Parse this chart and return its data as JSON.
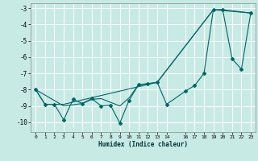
{
  "xlabel": "Humidex (Indice chaleur)",
  "bg_color": "#c8eae5",
  "grid_color": "#ffffff",
  "line_color": "#006666",
  "xlim": [
    -0.5,
    23.5
  ],
  "ylim": [
    -10.6,
    -2.7
  ],
  "xticks": [
    0,
    1,
    2,
    3,
    4,
    5,
    6,
    7,
    8,
    9,
    10,
    11,
    12,
    13,
    14,
    16,
    17,
    18,
    19,
    20,
    21,
    22,
    23
  ],
  "yticks": [
    -10,
    -9,
    -8,
    -7,
    -6,
    -5,
    -4,
    -3
  ],
  "series1": [
    [
      0,
      -8.0
    ],
    [
      1,
      -8.9
    ],
    [
      2,
      -8.9
    ],
    [
      3,
      -9.85
    ],
    [
      4,
      -8.6
    ],
    [
      5,
      -8.85
    ],
    [
      6,
      -8.55
    ],
    [
      7,
      -9.0
    ],
    [
      8,
      -8.95
    ],
    [
      9,
      -10.05
    ],
    [
      10,
      -8.65
    ],
    [
      11,
      -7.7
    ],
    [
      12,
      -7.65
    ],
    [
      13,
      -7.55
    ],
    [
      14,
      -8.9
    ],
    [
      16,
      -8.1
    ],
    [
      17,
      -7.75
    ],
    [
      18,
      -7.0
    ],
    [
      19,
      -3.1
    ],
    [
      20,
      -3.1
    ],
    [
      21,
      -6.1
    ],
    [
      22,
      -6.75
    ],
    [
      23,
      -3.3
    ]
  ],
  "series2": [
    [
      0,
      -8.0
    ],
    [
      3,
      -9.0
    ],
    [
      5,
      -8.85
    ],
    [
      6,
      -8.6
    ],
    [
      7,
      -8.55
    ],
    [
      9,
      -9.0
    ],
    [
      10,
      -8.5
    ],
    [
      11,
      -7.7
    ],
    [
      13,
      -7.55
    ],
    [
      19,
      -3.1
    ],
    [
      20,
      -3.1
    ],
    [
      23,
      -3.3
    ]
  ],
  "series3": [
    [
      0,
      -8.0
    ],
    [
      1,
      -8.9
    ],
    [
      2,
      -8.9
    ],
    [
      3,
      -8.9
    ],
    [
      13,
      -7.55
    ],
    [
      19,
      -3.1
    ],
    [
      23,
      -3.3
    ]
  ]
}
